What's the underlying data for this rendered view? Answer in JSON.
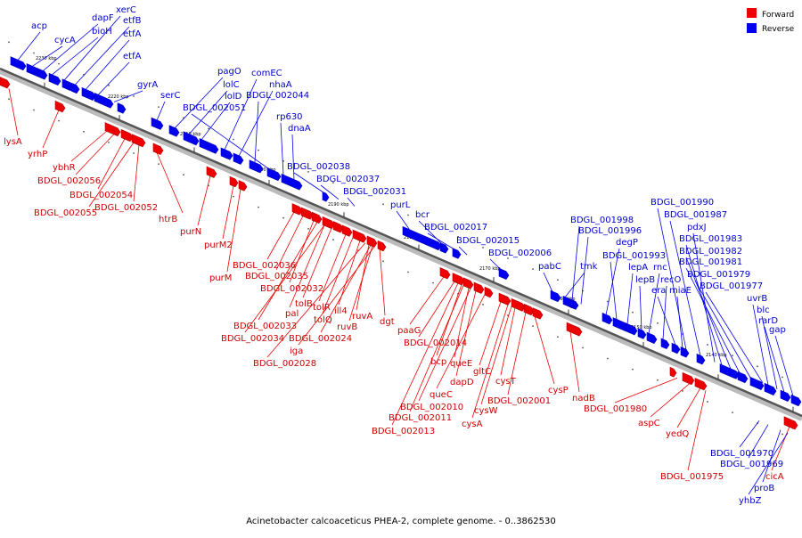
{
  "legend": {
    "forward": {
      "label": "Forward",
      "color": "#ee0000"
    },
    "reverse": {
      "label": "Reverse",
      "color": "#0000ee"
    }
  },
  "caption": "Acinetobacter calcoaceticus PHEA-2, complete genome. - 0..3862530",
  "ticks": [
    "2230 kbp",
    "2220 kbp",
    "2210 kbp",
    "2200 kbp",
    "2190 kbp",
    "2180 kbp",
    "2170 kbp",
    "2160 kbp",
    "2150 kbp",
    "2140 kbp"
  ],
  "reverse_labels": [
    "acp",
    "cycA",
    "dapF",
    "bioH",
    "xerC",
    "etfB",
    "etfA",
    "etfA",
    "gyrA",
    "serC",
    "pagO",
    "lolC",
    "lolD",
    "comEC",
    "nhaA",
    "BDGL_002044",
    "BDGL_002051",
    "rp630",
    "dnaA",
    "BDGL_002038",
    "BDGL_002037",
    "BDGL_002031",
    "purL",
    "bcr",
    "BDGL_002017",
    "BDGL_002015",
    "BDGL_002006",
    "pabC",
    "tmk",
    "BDGL_001998",
    "BDGL_001996",
    "degP",
    "BDGL_001993",
    "lepA",
    "lepB",
    "rnc",
    "recO",
    "era",
    "miaE",
    "BDGL_001990",
    "BDGL_001987",
    "pdxJ",
    "BDGL_001983",
    "BDGL_001982",
    "BDGL_001981",
    "BDGL_001979",
    "BDGL_001977",
    "uvrB",
    "blc",
    "rarD",
    "gap",
    "BDGL_001970",
    "BDGL_001969",
    "proB",
    "yhbZ"
  ],
  "forward_labels": [
    "lysA",
    "yrhP",
    "ybhR",
    "BDGL_002056",
    "BDGL_002054",
    "BDGL_002055",
    "BDGL_002052",
    "htrB",
    "purN",
    "purM2",
    "purM",
    "BDGL_002036",
    "BDGL_002035",
    "BDGL_002032",
    "pal",
    "tolB",
    "tolR",
    "tolQ",
    "ill4",
    "ruvA",
    "ruvB",
    "dgt",
    "BDGL_002033",
    "BDGL_002034",
    "BDGL_002024",
    "iga",
    "BDGL_002028",
    "paaG",
    "BDGL_002014",
    "bcp",
    "queE",
    "dapD",
    "queC",
    "gltC",
    "cysT",
    "BDGL_002010",
    "BDGL_002011",
    "BDGL_002013",
    "cysW",
    "cysA",
    "BDGL_002001",
    "cysP",
    "nadB",
    "BDGL_001980",
    "aspC",
    "yedQ",
    "BDGL_001975",
    "cicA"
  ]
}
